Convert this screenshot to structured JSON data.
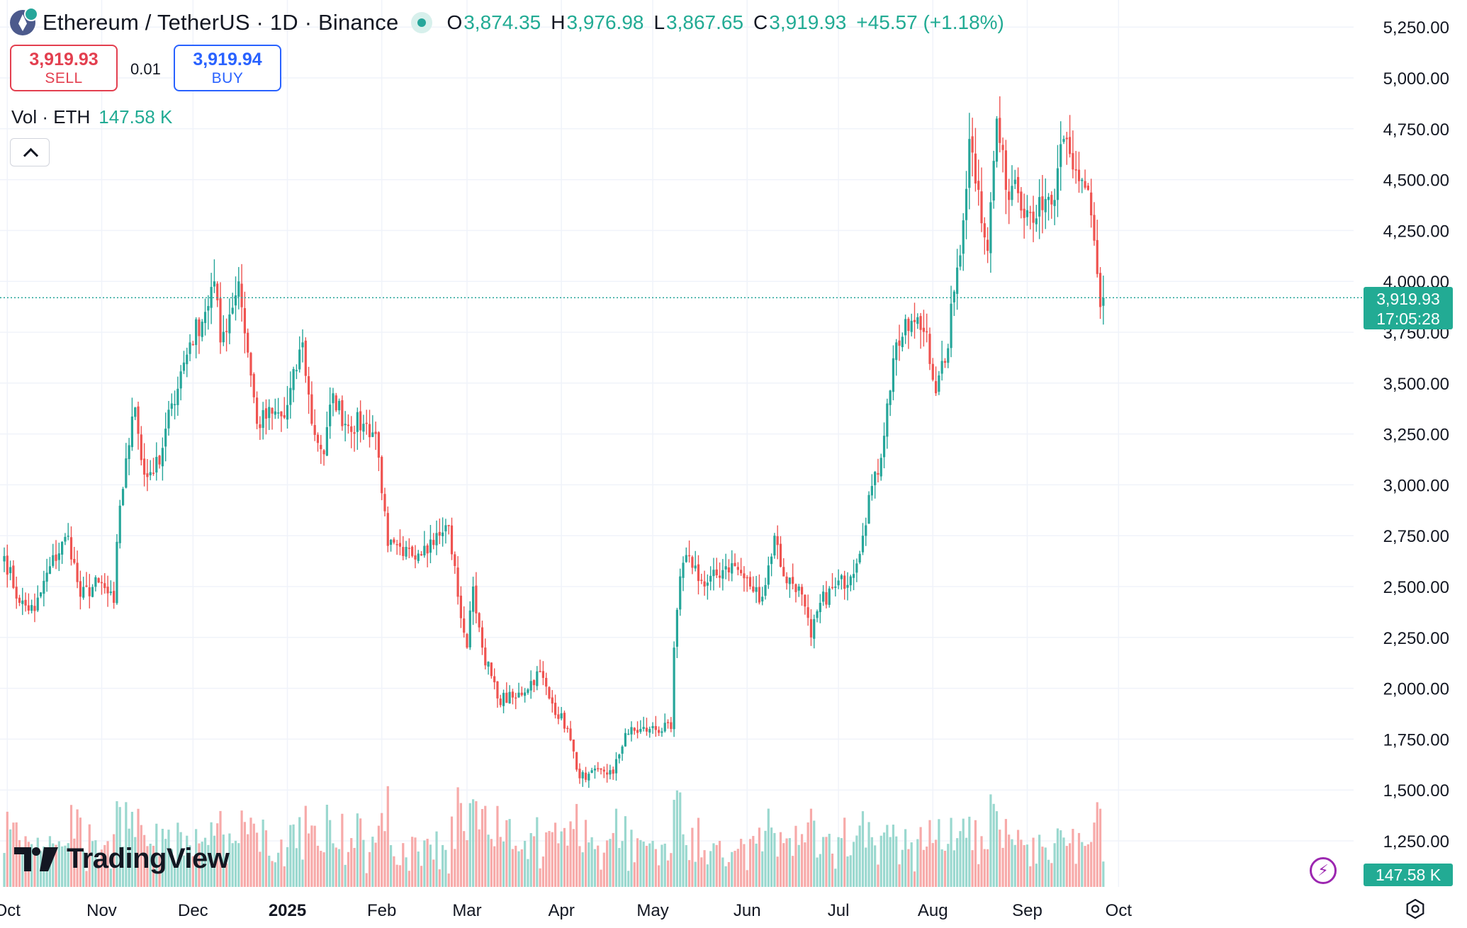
{
  "header": {
    "symbol_title": "Ethereum / TetherUS · 1D · Binance",
    "ohlc": {
      "o_label": "O",
      "o": "3,874.35",
      "h_label": "H",
      "h": "3,976.98",
      "l_label": "L",
      "l": "3,867.65",
      "c_label": "C",
      "c": "3,919.93",
      "change": "+45.57 (+1.18%)"
    }
  },
  "trade": {
    "sell_price": "3,919.93",
    "sell_label": "SELL",
    "spread": "0.01",
    "buy_price": "3,919.94",
    "buy_label": "BUY"
  },
  "volume_legend": {
    "label": "Vol · ETH",
    "value": "147.58 K"
  },
  "last_price_tag": {
    "price": "3,919.93",
    "countdown": "17:05:28"
  },
  "volume_tag": "147.58 K",
  "brand": "TradingView",
  "colors": {
    "up": "#26a69a",
    "down": "#ef5350",
    "up_volume": "#9ad8cf",
    "down_volume": "#f7aaa9",
    "grid": "#f0f3fa",
    "text": "#131722"
  },
  "chart_data": {
    "type": "candlestick",
    "timeframe": "1D",
    "y_ticks": [
      1250,
      1500,
      1750,
      2000,
      2250,
      2500,
      2750,
      3000,
      3250,
      3500,
      3750,
      4000,
      4250,
      4500,
      4750,
      5000,
      5250
    ],
    "y_tick_labels": [
      "1,250.00",
      "1,500.00",
      "1,750.00",
      "2,000.00",
      "2,250.00",
      "2,500.00",
      "2,750.00",
      "3,000.00",
      "3,250.00",
      "3,500.00",
      "3,750.00",
      "4,000.00",
      "4,250.00",
      "4,500.00",
      "4,750.00",
      "5,000.00",
      "5,250.00"
    ],
    "ylim": [
      1100,
      5340
    ],
    "x_ticks": [
      {
        "label": "Oct",
        "date": "2024-10-01",
        "bold": false
      },
      {
        "label": "Nov",
        "date": "2024-11-01",
        "bold": false
      },
      {
        "label": "Dec",
        "date": "2024-12-01",
        "bold": false
      },
      {
        "label": "2025",
        "date": "2025-01-01",
        "bold": true
      },
      {
        "label": "Feb",
        "date": "2025-02-01",
        "bold": false
      },
      {
        "label": "Mar",
        "date": "2025-03-01",
        "bold": false
      },
      {
        "label": "Apr",
        "date": "2025-04-01",
        "bold": false
      },
      {
        "label": "May",
        "date": "2025-05-01",
        "bold": false
      },
      {
        "label": "Jun",
        "date": "2025-06-01",
        "bold": false
      },
      {
        "label": "Jul",
        "date": "2025-07-01",
        "bold": false
      },
      {
        "label": "Aug",
        "date": "2025-08-01",
        "bold": false
      },
      {
        "label": "Sep",
        "date": "2025-09-01",
        "bold": false
      },
      {
        "label": "Oct",
        "date": "2025-10-01",
        "bold": false
      }
    ],
    "date_range": [
      "2024-09-30",
      "2025-09-26"
    ],
    "close_anchors": [
      [
        "2024-09-30",
        2650
      ],
      [
        "2024-10-05",
        2420
      ],
      [
        "2024-10-10",
        2380
      ],
      [
        "2024-10-15",
        2600
      ],
      [
        "2024-10-21",
        2750
      ],
      [
        "2024-10-25",
        2450
      ],
      [
        "2024-10-31",
        2520
      ],
      [
        "2024-11-05",
        2420
      ],
      [
        "2024-11-06",
        2720
      ],
      [
        "2024-11-09",
        3130
      ],
      [
        "2024-11-12",
        3380
      ],
      [
        "2024-11-15",
        3050
      ],
      [
        "2024-11-20",
        3100
      ],
      [
        "2024-11-24",
        3400
      ],
      [
        "2024-11-30",
        3700
      ],
      [
        "2024-12-05",
        3850
      ],
      [
        "2024-12-08",
        4000
      ],
      [
        "2024-12-10",
        3700
      ],
      [
        "2024-12-16",
        4000
      ],
      [
        "2024-12-19",
        3650
      ],
      [
        "2024-12-22",
        3300
      ],
      [
        "2024-12-27",
        3350
      ],
      [
        "2024-12-31",
        3330
      ],
      [
        "2025-01-06",
        3700
      ],
      [
        "2025-01-09",
        3300
      ],
      [
        "2025-01-13",
        3150
      ],
      [
        "2025-01-16",
        3450
      ],
      [
        "2025-01-20",
        3300
      ],
      [
        "2025-01-26",
        3300
      ],
      [
        "2025-01-30",
        3250
      ],
      [
        "2025-02-02",
        2870
      ],
      [
        "2025-02-03",
        2700
      ],
      [
        "2025-02-08",
        2650
      ],
      [
        "2025-02-15",
        2700
      ],
      [
        "2025-02-20",
        2750
      ],
      [
        "2025-02-23",
        2800
      ],
      [
        "2025-02-26",
        2450
      ],
      [
        "2025-03-01",
        2200
      ],
      [
        "2025-03-03",
        2500
      ],
      [
        "2025-03-06",
        2200
      ],
      [
        "2025-03-11",
        1950
      ],
      [
        "2025-03-17",
        1950
      ],
      [
        "2025-03-25",
        2080
      ],
      [
        "2025-03-28",
        1950
      ],
      [
        "2025-04-03",
        1800
      ],
      [
        "2025-04-06",
        1600
      ],
      [
        "2025-04-09",
        1550
      ],
      [
        "2025-04-14",
        1600
      ],
      [
        "2025-04-18",
        1580
      ],
      [
        "2025-04-22",
        1780
      ],
      [
        "2025-04-30",
        1800
      ],
      [
        "2025-05-07",
        1800
      ],
      [
        "2025-05-08",
        2200
      ],
      [
        "2025-05-10",
        2550
      ],
      [
        "2025-05-13",
        2650
      ],
      [
        "2025-05-18",
        2500
      ],
      [
        "2025-05-25",
        2600
      ],
      [
        "2025-05-28",
        2600
      ],
      [
        "2025-06-02",
        2500
      ],
      [
        "2025-06-06",
        2450
      ],
      [
        "2025-06-10",
        2750
      ],
      [
        "2025-06-13",
        2550
      ],
      [
        "2025-06-18",
        2500
      ],
      [
        "2025-06-22",
        2250
      ],
      [
        "2025-06-25",
        2420
      ],
      [
        "2025-06-30",
        2500
      ],
      [
        "2025-07-05",
        2550
      ],
      [
        "2025-07-09",
        2750
      ],
      [
        "2025-07-11",
        2950
      ],
      [
        "2025-07-14",
        3050
      ],
      [
        "2025-07-17",
        3400
      ],
      [
        "2025-07-20",
        3700
      ],
      [
        "2025-07-26",
        3800
      ],
      [
        "2025-07-30",
        3750
      ],
      [
        "2025-08-02",
        3450
      ],
      [
        "2025-08-05",
        3600
      ],
      [
        "2025-08-08",
        3950
      ],
      [
        "2025-08-11",
        4300
      ],
      [
        "2025-08-13",
        4700
      ],
      [
        "2025-08-16",
        4450
      ],
      [
        "2025-08-19",
        4150
      ],
      [
        "2025-08-22",
        4800
      ],
      [
        "2025-08-25",
        4450
      ],
      [
        "2025-08-28",
        4500
      ],
      [
        "2025-09-01",
        4350
      ],
      [
        "2025-09-06",
        4350
      ],
      [
        "2025-09-10",
        4400
      ],
      [
        "2025-09-13",
        4700
      ],
      [
        "2025-09-16",
        4550
      ],
      [
        "2025-09-19",
        4500
      ],
      [
        "2025-09-21",
        4450
      ],
      [
        "2025-09-23",
        4200
      ],
      [
        "2025-09-25",
        3874
      ],
      [
        "2025-09-26",
        3919.93
      ]
    ],
    "last_close": 3919.93,
    "volume": {
      "series_name": "Vol · ETH",
      "last_value": "147.58 K"
    }
  }
}
